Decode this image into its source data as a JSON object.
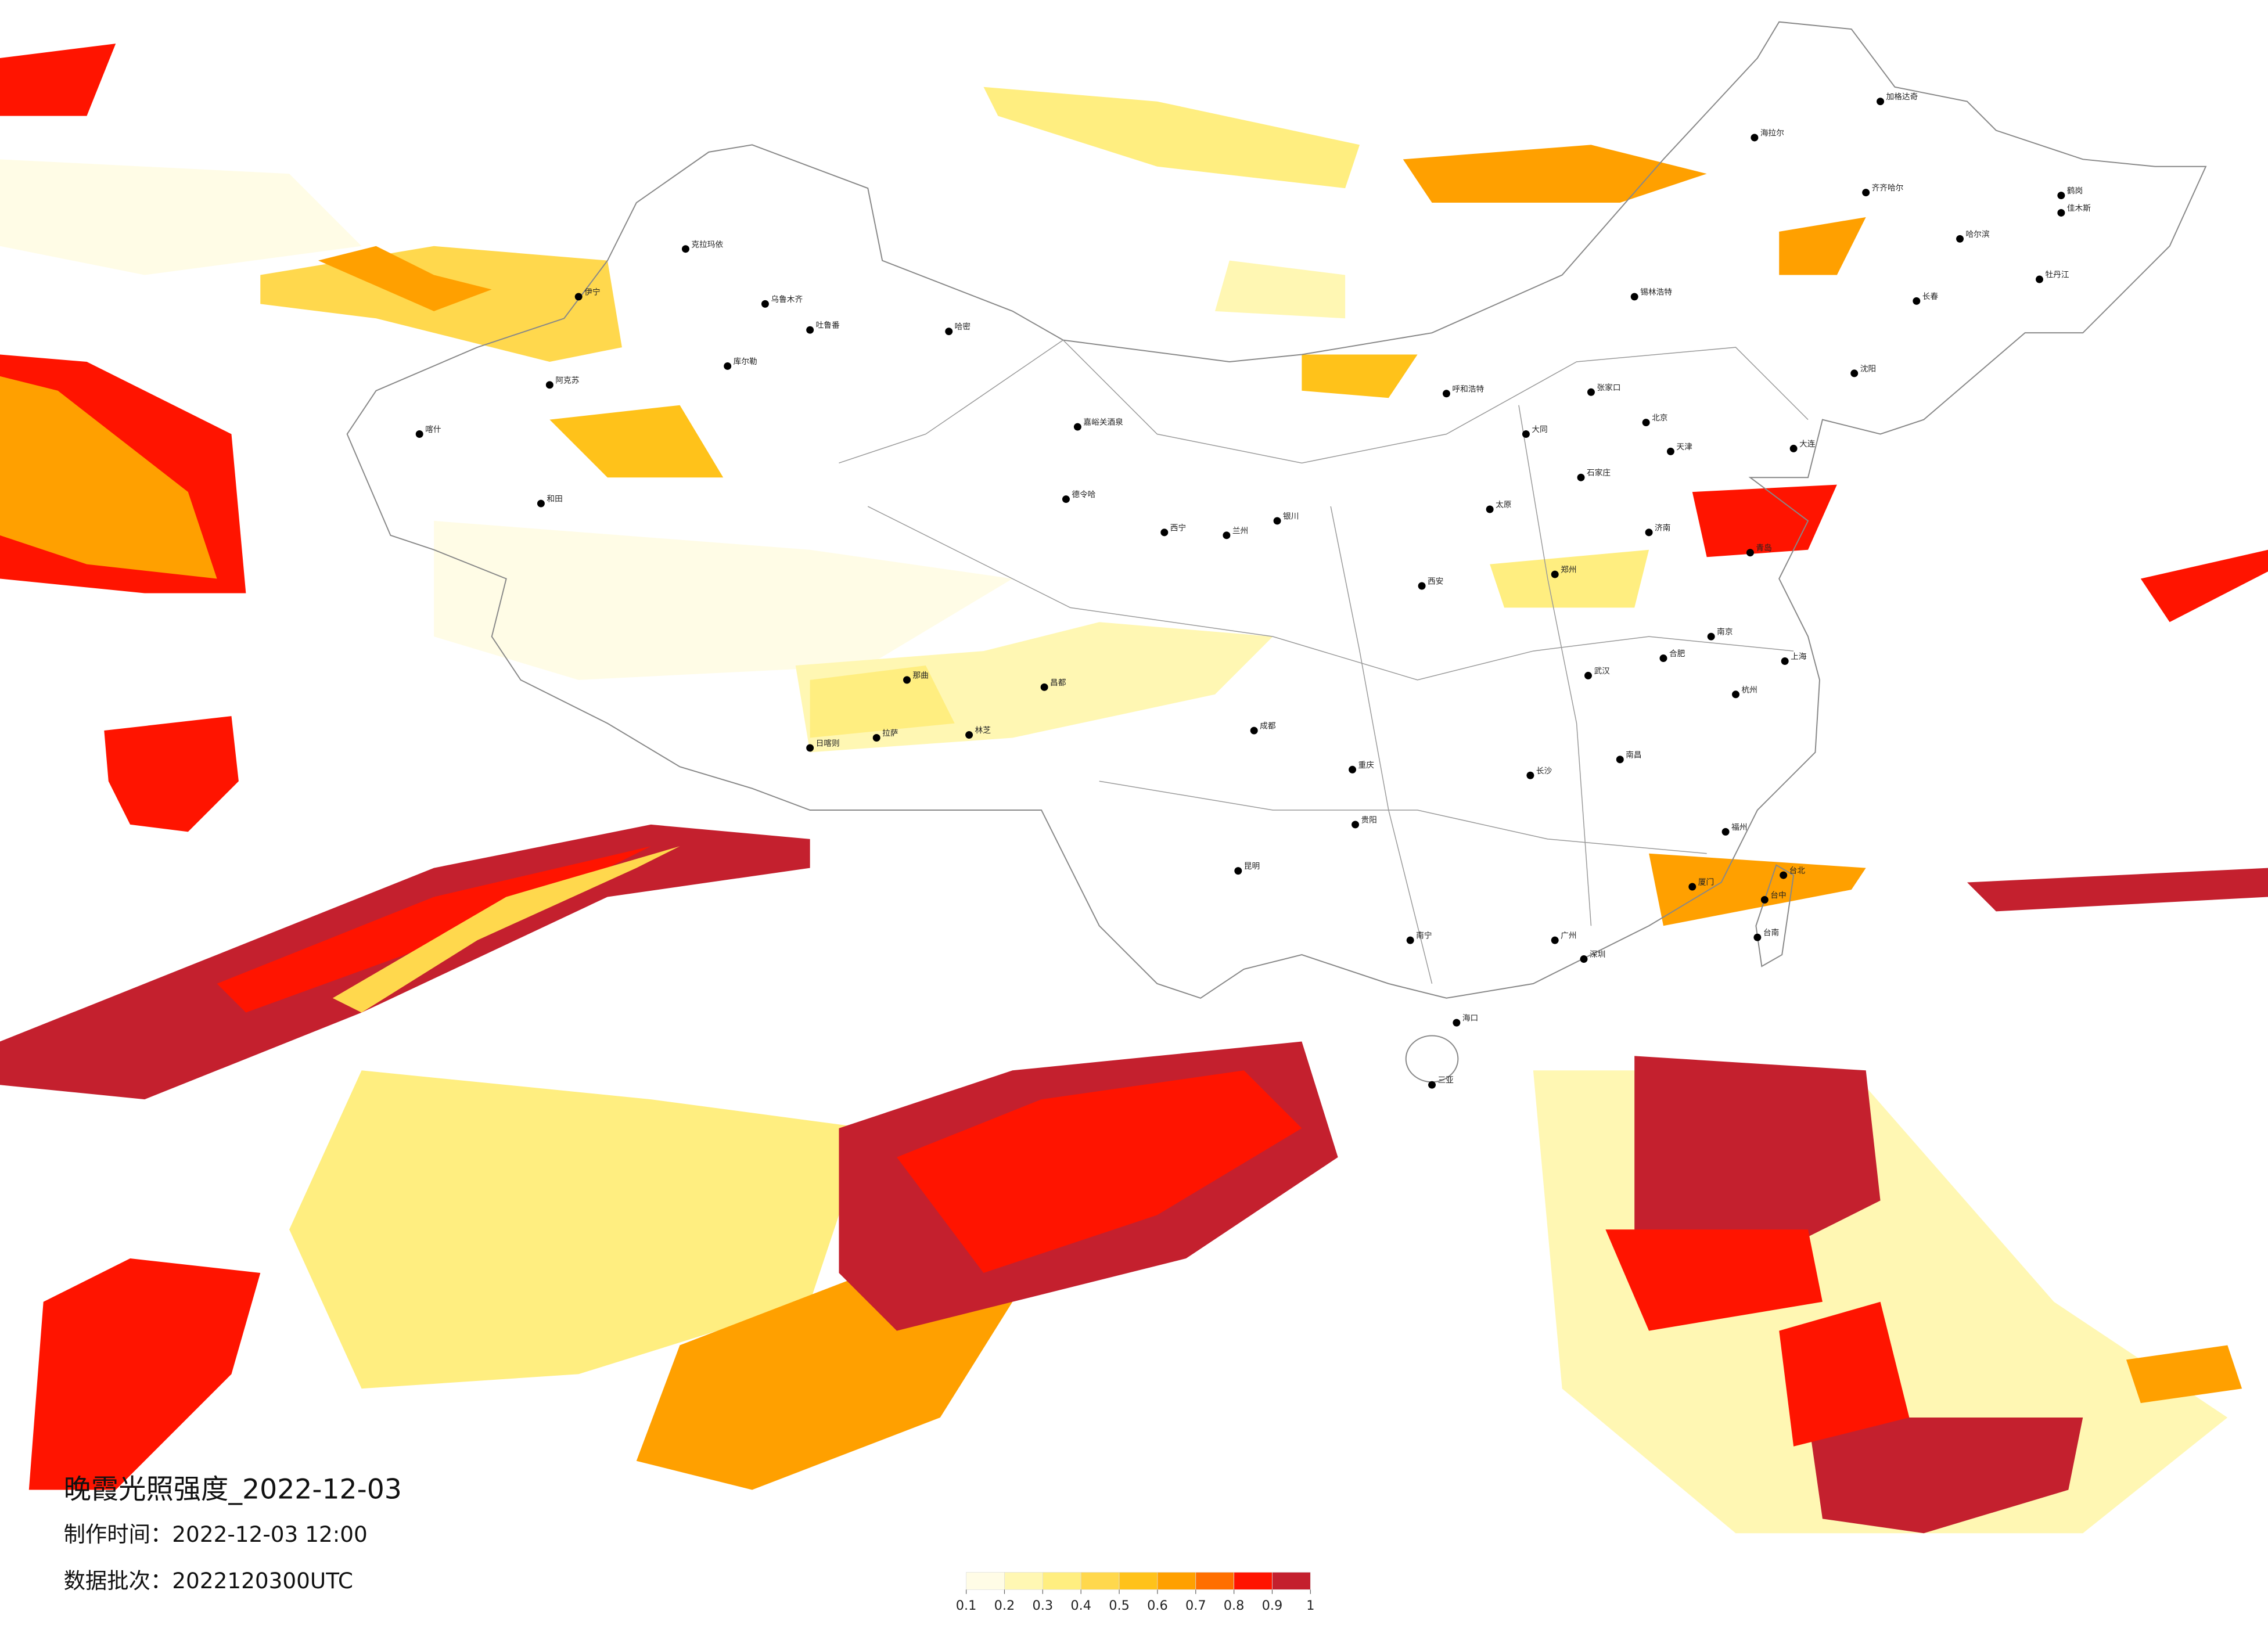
{
  "title": "晚霞光照强度_2022-12-03",
  "produced": "制作时间：2022-12-03 12:00",
  "batch": "数据批次：2022120300UTC",
  "colorbar": {
    "colors": [
      "#fffce6",
      "#fff7b3",
      "#ffee80",
      "#ffd84d",
      "#ffc21a",
      "#ffa000",
      "#ff6f00",
      "#ff1400",
      "#c4202e"
    ],
    "ticks": [
      0.1,
      0.2,
      0.3,
      0.4,
      0.5,
      0.6,
      0.7,
      0.8,
      0.9,
      1
    ]
  },
  "cities": [
    "克拉玛依",
    "乌鲁木齐",
    "吐鲁番",
    "哈密",
    "库尔勒",
    "阿克苏",
    "喀什",
    "和田",
    "伊宁",
    "拉萨",
    "日喀则",
    "林芝",
    "那曲",
    "昌都",
    "嘉峪关酒泉",
    "德令哈",
    "西宁",
    "兰州",
    "银川",
    "呼和浩特",
    "北京",
    "天津",
    "石家庄",
    "太原",
    "济南",
    "青岛",
    "郑州",
    "西安",
    "武汉",
    "南京",
    "上海",
    "杭州",
    "合肥",
    "长沙",
    "南昌",
    "福州",
    "厦门",
    "台北",
    "广州",
    "深圳",
    "南宁",
    "海口",
    "三亚",
    "昆明",
    "贵阳",
    "成都",
    "重庆",
    "哈尔滨",
    "长春",
    "沈阳",
    "大连",
    "海拉尔",
    "加格达奇",
    "齐齐哈尔",
    "鹤岗",
    "佳木斯",
    "牡丹江",
    "锡林浩特",
    "张家口",
    "大同",
    "台中",
    "台南"
  ]
}
